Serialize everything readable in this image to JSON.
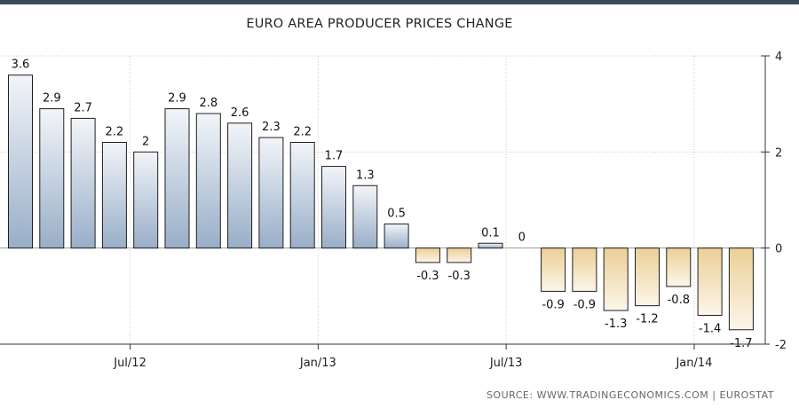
{
  "chart_data": {
    "type": "bar",
    "title": "EURO AREA PRODUCER PRICES CHANGE",
    "source": "SOURCE:  WWW.TRADINGECONOMICS.COM  |  EUROSTAT",
    "series": [
      {
        "values": [
          3.6,
          2.9,
          2.7,
          2.2,
          2,
          2.9,
          2.8,
          2.6,
          2.3,
          2.2,
          1.7,
          1.3,
          0.5,
          -0.3,
          -0.3,
          0.1,
          0,
          -0.9,
          -0.9,
          -1.3,
          -1.2,
          -0.8,
          -1.4,
          -1.7
        ]
      }
    ],
    "value_labels": [
      "3.6",
      "2.9",
      "2.7",
      "2.2",
      "2",
      "2.9",
      "2.8",
      "2.6",
      "2.3",
      "2.2",
      "1.7",
      "1.3",
      "0.5",
      "-0.3",
      "-0.3",
      "0.1",
      "0",
      "-0.9",
      "-0.9",
      "-1.3",
      "-1.2",
      "-0.8",
      "-1.4",
      "-1.7"
    ],
    "x_tick_labels": [
      "Jul/12",
      "Jan/13",
      "Jul/13",
      "Jan/14"
    ],
    "x_tick_label_at_bar": [
      4,
      10,
      16,
      22
    ],
    "y_ticks": [
      4,
      2,
      0,
      -2
    ],
    "y_tick_labels": [
      "4",
      "2",
      "0",
      "-2"
    ],
    "ylim": [
      -2,
      4
    ],
    "y_axis_side": "right",
    "grid": true,
    "colors": {
      "positive_top": "#f2f5f9",
      "positive_bottom": "#98aec8",
      "negative_top": "#ebcf96",
      "negative_bottom": "#fcf6ea",
      "bar_stroke": "#1e1e1e",
      "grid": "#c8c8c8",
      "zero_line": "#999999",
      "axis": "#333333"
    }
  }
}
